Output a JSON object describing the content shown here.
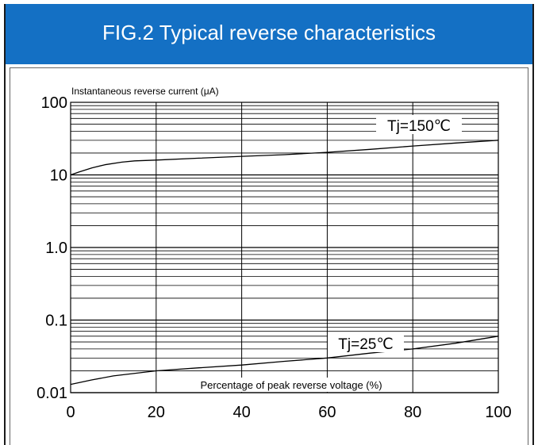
{
  "header": {
    "title": "FIG.2 Typical reverse characteristics"
  },
  "colors": {
    "header_bg": "#1470c4",
    "header_text": "#ffffff",
    "line": "#000000"
  },
  "chart_data": {
    "type": "line",
    "title": "FIG.2 Typical reverse characteristics",
    "ylabel": "Instantaneous reverse current (μA)",
    "xlabel": "Percentage of peak reverse voltage (%)",
    "xlim": [
      0,
      100
    ],
    "ylim": [
      0.01,
      100
    ],
    "yscale": "log",
    "grid": true,
    "x_ticks": [
      "0",
      "20",
      "40",
      "60",
      "80",
      "100"
    ],
    "y_ticks": [
      "100",
      "10",
      "1.0",
      "0.1",
      "0.01"
    ],
    "series": [
      {
        "name": "Tj=150℃",
        "x": [
          0,
          2,
          5,
          8,
          12,
          15,
          20,
          30,
          40,
          50,
          60,
          70,
          80,
          90,
          100
        ],
        "y": [
          10,
          11,
          12.5,
          13.8,
          15,
          15.6,
          16,
          17,
          18,
          19,
          20.5,
          22.5,
          25,
          27.5,
          30
        ]
      },
      {
        "name": "Tj=25℃",
        "x": [
          0,
          5,
          10,
          20,
          30,
          40,
          50,
          60,
          70,
          80,
          90,
          100
        ],
        "y": [
          0.013,
          0.015,
          0.017,
          0.02,
          0.022,
          0.024,
          0.027,
          0.03,
          0.035,
          0.04,
          0.048,
          0.06
        ]
      }
    ]
  }
}
